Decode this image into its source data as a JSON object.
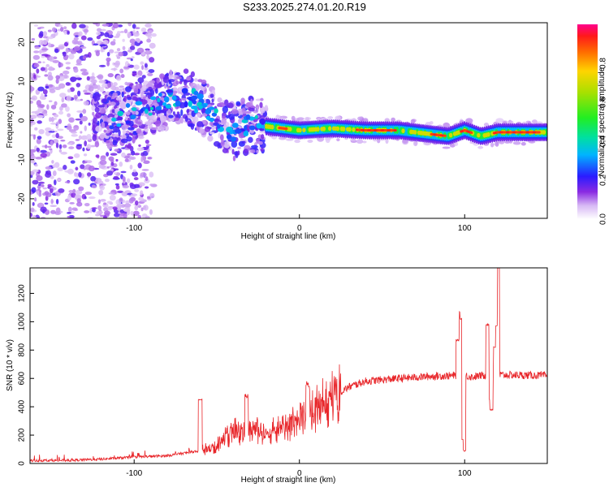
{
  "title": "S233.2025.274.01.20.R19",
  "chart_data": [
    {
      "type": "heatmap",
      "name": "spectrogram",
      "xlabel": "Height of straight line (km)",
      "ylabel": "Frequency (Hz)",
      "xlim": [
        -163,
        150
      ],
      "ylim": [
        -25,
        25
      ],
      "xticks": [
        -100,
        0,
        100
      ],
      "yticks": [
        -20,
        -10,
        0,
        10,
        20
      ],
      "xtick_labels": [
        "-100",
        "0",
        "100"
      ],
      "ytick_labels": [
        "-20",
        "-10",
        "0",
        "10",
        "20"
      ],
      "colorbar": {
        "label": "Normalized spectral amplitude",
        "range": [
          0,
          1
        ],
        "ticks": [
          0.0,
          0.2,
          0.4,
          0.6,
          0.8
        ],
        "tick_labels": [
          "0.0",
          "0.2",
          "0.4",
          "0.6",
          "0.8"
        ]
      },
      "ridge": {
        "x": [
          -120,
          -100,
          -80,
          -70,
          -60,
          -50,
          -40,
          -30,
          -20,
          -10,
          0,
          20,
          40,
          60,
          80,
          90,
          100,
          110,
          120,
          150
        ],
        "y": [
          0,
          2,
          5,
          7,
          4,
          0,
          -3,
          -1,
          -1.5,
          -2,
          -2.5,
          -2,
          -2.5,
          -2.5,
          -3.5,
          -4,
          -2.5,
          -4,
          -3,
          -3
        ]
      }
    },
    {
      "type": "line",
      "name": "snr",
      "xlabel": "Height of straight line (km)",
      "ylabel": "SNR (10 * v/v)",
      "xlim": [
        -163,
        150
      ],
      "ylim": [
        0,
        1380
      ],
      "xticks": [
        -100,
        0,
        100
      ],
      "yticks": [
        0,
        200,
        400,
        600,
        800,
        1000,
        1200
      ],
      "xtick_labels": [
        "-100",
        "0",
        "100"
      ],
      "ytick_labels": [
        "0",
        "200",
        "400",
        "600",
        "800",
        "1000",
        "1200"
      ],
      "color": "#e8262a",
      "trend": {
        "x": [
          -163,
          -140,
          -120,
          -100,
          -80,
          -60,
          -50,
          -40,
          -30,
          -20,
          -10,
          0,
          10,
          20,
          30,
          40,
          60,
          80,
          95,
          100,
          105,
          110,
          120,
          150
        ],
        "y": [
          20,
          22,
          30,
          45,
          55,
          90,
          130,
          220,
          250,
          230,
          270,
          300,
          380,
          470,
          540,
          580,
          600,
          615,
          620,
          620,
          610,
          620,
          625,
          620
        ]
      },
      "spikes": [
        {
          "x": 96,
          "y": 870
        },
        {
          "x": 98,
          "y": 1020
        },
        {
          "x": 99.5,
          "y": 90
        },
        {
          "x": 114,
          "y": 980
        },
        {
          "x": 116,
          "y": 380
        },
        {
          "x": 120,
          "y": 1380
        },
        {
          "x": 118.5,
          "y": 820
        },
        {
          "x": -32,
          "y": 470
        },
        {
          "x": 5,
          "y": 550
        },
        {
          "x": -60,
          "y": 450
        }
      ]
    }
  ]
}
